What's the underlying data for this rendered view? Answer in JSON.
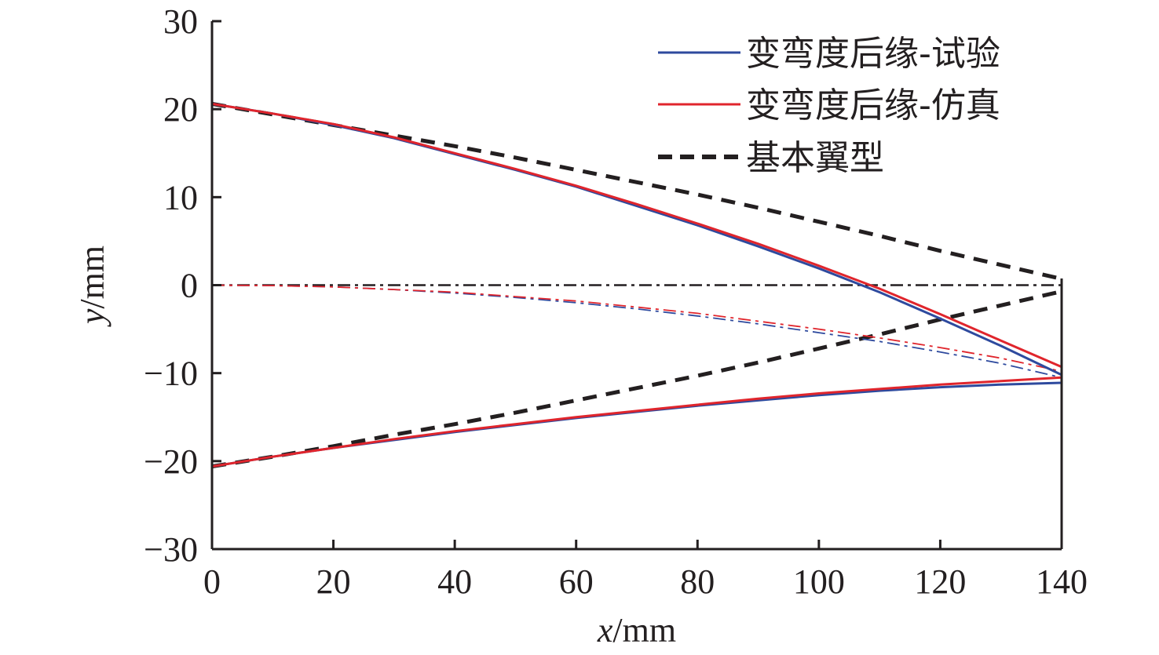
{
  "chart_data": {
    "type": "line",
    "xlabel_var": "x",
    "xlabel_unit": "/mm",
    "ylabel_var": "y",
    "ylabel_unit": "/mm",
    "xlim": [
      0,
      140
    ],
    "ylim": [
      -30,
      30
    ],
    "xticks": [
      0,
      20,
      40,
      60,
      80,
      100,
      120,
      140
    ],
    "yticks": [
      -30,
      -20,
      -10,
      0,
      10,
      20,
      30
    ],
    "ytick_labels": [
      "−30",
      "−20",
      "−10",
      "0",
      "10",
      "20",
      "30"
    ],
    "grid": false,
    "legend_position": "top-right",
    "legend": [
      {
        "label": "变弯度后缘-试验",
        "color": "#2e4a9e",
        "style": "solid"
      },
      {
        "label": "变弯度后缘-仿真",
        "color": "#e0252c",
        "style": "solid"
      },
      {
        "label": "基本翼型",
        "color": "#231f20",
        "style": "dashed"
      }
    ],
    "x": [
      0,
      10,
      20,
      30,
      40,
      50,
      60,
      70,
      80,
      90,
      100,
      110,
      120,
      130,
      140
    ],
    "series": [
      {
        "name": "基本翼型-上表面",
        "color": "#231f20",
        "style": "dashed",
        "values": [
          20.6,
          19.4,
          18.2,
          17.0,
          15.8,
          14.5,
          13.1,
          11.7,
          10.3,
          8.8,
          7.2,
          5.6,
          3.9,
          2.3,
          0.7
        ]
      },
      {
        "name": "基本翼型-下表面",
        "color": "#231f20",
        "style": "dashed",
        "values": [
          -20.6,
          -19.5,
          -18.3,
          -17.0,
          -15.8,
          -14.5,
          -13.1,
          -11.7,
          -10.3,
          -8.8,
          -7.2,
          -5.6,
          -3.9,
          -2.3,
          -0.7
        ]
      },
      {
        "name": "基本翼型-中弧线",
        "color": "#231f20",
        "style": "dashdot",
        "values": [
          0,
          0,
          0,
          0,
          0,
          0,
          0,
          0,
          0,
          0,
          0,
          0,
          0,
          0,
          0
        ]
      },
      {
        "name": "变弯度后缘-试验-中弧线",
        "color": "#2e4a9e",
        "style": "dashdot",
        "values": [
          0,
          -0.05,
          -0.2,
          -0.5,
          -0.9,
          -1.4,
          -2.0,
          -2.7,
          -3.5,
          -4.4,
          -5.4,
          -6.4,
          -7.6,
          -8.9,
          -10.5
        ]
      },
      {
        "name": "变弯度后缘-仿真-中弧线",
        "color": "#e0252c",
        "style": "dashdot",
        "values": [
          0,
          -0.05,
          -0.2,
          -0.5,
          -0.8,
          -1.3,
          -1.8,
          -2.5,
          -3.2,
          -4.1,
          -5.0,
          -6.0,
          -7.1,
          -8.3,
          -9.8
        ]
      },
      {
        "name": "变弯度后缘-试验-上表面",
        "color": "#2e4a9e",
        "style": "solid",
        "values": [
          20.6,
          19.5,
          18.2,
          16.7,
          14.9,
          13.1,
          11.2,
          9.0,
          6.8,
          4.4,
          1.9,
          -0.8,
          -3.8,
          -6.9,
          -10.2
        ]
      },
      {
        "name": "变弯度后缘-试验-下表面",
        "color": "#2e4a9e",
        "style": "solid",
        "values": [
          -20.6,
          -19.5,
          -18.5,
          -17.6,
          -16.7,
          -15.9,
          -15.1,
          -14.4,
          -13.7,
          -13.1,
          -12.5,
          -12.0,
          -11.6,
          -11.3,
          -11.1
        ]
      },
      {
        "name": "变弯度后缘-仿真-上表面",
        "color": "#e0252c",
        "style": "solid",
        "values": [
          20.6,
          19.5,
          18.3,
          16.8,
          15.0,
          13.2,
          11.3,
          9.2,
          7.0,
          4.7,
          2.2,
          -0.4,
          -3.3,
          -6.3,
          -9.3
        ]
      },
      {
        "name": "变弯度后缘-仿真-下表面",
        "color": "#e0252c",
        "style": "solid",
        "values": [
          -20.6,
          -19.5,
          -18.5,
          -17.5,
          -16.6,
          -15.8,
          -15.0,
          -14.3,
          -13.6,
          -12.9,
          -12.3,
          -11.8,
          -11.3,
          -10.9,
          -10.5
        ]
      }
    ]
  }
}
